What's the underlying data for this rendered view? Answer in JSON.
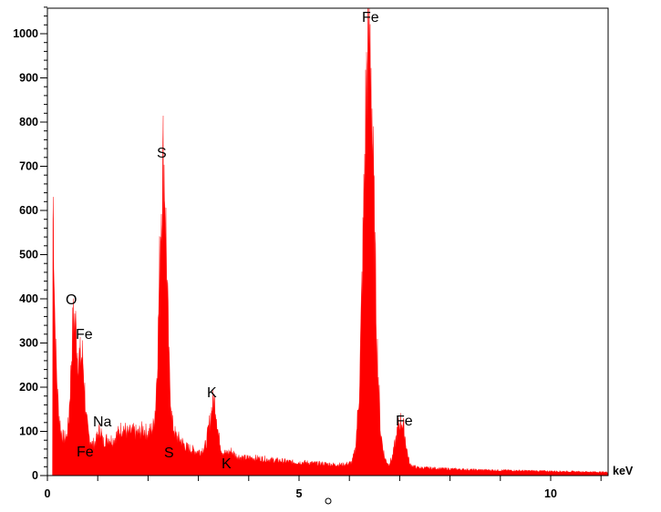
{
  "chart_data": {
    "type": "area",
    "title": "",
    "xlabel": "keV",
    "ylabel": "",
    "xlim": [
      0,
      11.14
    ],
    "ylim": [
      0,
      1088
    ],
    "x_ticks": [
      0,
      5,
      10
    ],
    "y_ticks": [
      0,
      100,
      200,
      300,
      400,
      500,
      600,
      700,
      800,
      900,
      1000
    ],
    "grid": false,
    "legend": "none",
    "color": "#ff0000",
    "points": [
      [
        0,
        0
      ],
      [
        0.1,
        0
      ],
      [
        0.11,
        670
      ],
      [
        0.13,
        530
      ],
      [
        0.15,
        350
      ],
      [
        0.18,
        240
      ],
      [
        0.22,
        150
      ],
      [
        0.27,
        100
      ],
      [
        0.32,
        85
      ],
      [
        0.38,
        88
      ],
      [
        0.42,
        120
      ],
      [
        0.46,
        220
      ],
      [
        0.5,
        330
      ],
      [
        0.53,
        362
      ],
      [
        0.56,
        340
      ],
      [
        0.6,
        280
      ],
      [
        0.65,
        265
      ],
      [
        0.7,
        270
      ],
      [
        0.73,
        220
      ],
      [
        0.77,
        130
      ],
      [
        0.82,
        90
      ],
      [
        0.9,
        70
      ],
      [
        0.97,
        80
      ],
      [
        1.02,
        100
      ],
      [
        1.06,
        105
      ],
      [
        1.1,
        75
      ],
      [
        1.2,
        85
      ],
      [
        1.3,
        80
      ],
      [
        1.4,
        95
      ],
      [
        1.5,
        110
      ],
      [
        1.6,
        95
      ],
      [
        1.7,
        100
      ],
      [
        1.8,
        95
      ],
      [
        1.9,
        105
      ],
      [
        2.0,
        95
      ],
      [
        2.1,
        110
      ],
      [
        2.15,
        160
      ],
      [
        2.2,
        320
      ],
      [
        2.25,
        580
      ],
      [
        2.3,
        715
      ],
      [
        2.33,
        680
      ],
      [
        2.37,
        480
      ],
      [
        2.42,
        240
      ],
      [
        2.48,
        120
      ],
      [
        2.55,
        90
      ],
      [
        2.65,
        80
      ],
      [
        2.75,
        65
      ],
      [
        2.85,
        60
      ],
      [
        2.95,
        55
      ],
      [
        3.05,
        55
      ],
      [
        3.15,
        70
      ],
      [
        3.22,
        120
      ],
      [
        3.28,
        160
      ],
      [
        3.31,
        175
      ],
      [
        3.35,
        150
      ],
      [
        3.4,
        90
      ],
      [
        3.47,
        55
      ],
      [
        3.55,
        50
      ],
      [
        3.65,
        55
      ],
      [
        3.75,
        45
      ],
      [
        3.9,
        40
      ],
      [
        4.1,
        40
      ],
      [
        4.3,
        38
      ],
      [
        4.5,
        35
      ],
      [
        4.7,
        33
      ],
      [
        4.9,
        30
      ],
      [
        5.1,
        30
      ],
      [
        5.3,
        28
      ],
      [
        5.5,
        27
      ],
      [
        5.7,
        25
      ],
      [
        5.9,
        25
      ],
      [
        6.05,
        30
      ],
      [
        6.12,
        60
      ],
      [
        6.2,
        200
      ],
      [
        6.27,
        520
      ],
      [
        6.33,
        850
      ],
      [
        6.38,
        1020
      ],
      [
        6.43,
        950
      ],
      [
        6.48,
        650
      ],
      [
        6.55,
        300
      ],
      [
        6.62,
        100
      ],
      [
        6.7,
        40
      ],
      [
        6.78,
        25
      ],
      [
        6.85,
        40
      ],
      [
        6.92,
        80
      ],
      [
        6.98,
        115
      ],
      [
        7.03,
        125
      ],
      [
        7.08,
        110
      ],
      [
        7.14,
        60
      ],
      [
        7.2,
        25
      ],
      [
        7.35,
        18
      ],
      [
        7.6,
        17
      ],
      [
        8.0,
        15
      ],
      [
        8.5,
        13
      ],
      [
        9.0,
        12
      ],
      [
        9.5,
        11
      ],
      [
        10.0,
        10
      ],
      [
        10.5,
        9
      ],
      [
        11.0,
        8
      ],
      [
        11.14,
        8
      ]
    ],
    "annotations": [
      {
        "text": "O"
      },
      {
        "text": "Fe"
      },
      {
        "text": "Na"
      },
      {
        "text": "Fe"
      },
      {
        "text": "S"
      },
      {
        "text": "S"
      },
      {
        "text": "K"
      },
      {
        "text": "K"
      },
      {
        "text": "Fe"
      },
      {
        "text": "Fe"
      }
    ],
    "marker": "o"
  }
}
